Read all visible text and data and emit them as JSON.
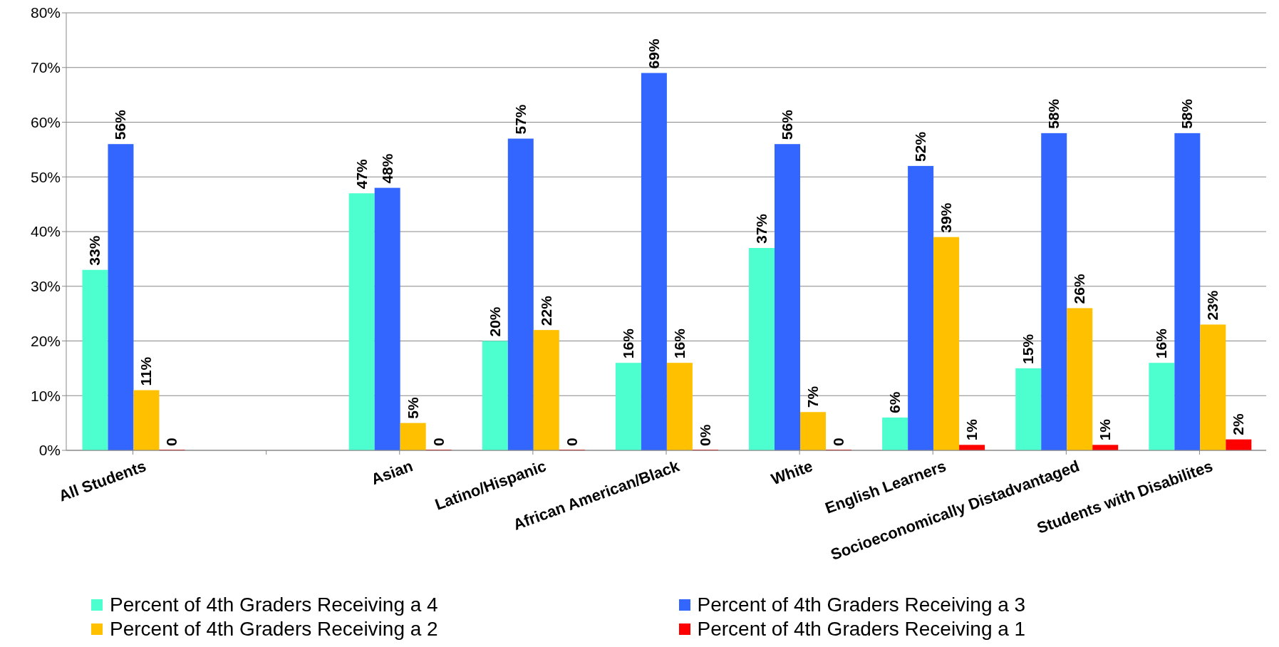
{
  "chart_data": {
    "type": "bar",
    "categories": [
      "All Students",
      null,
      "Asian",
      "Latino/Hispanic",
      "African American/Black",
      "White",
      "English Learners",
      "Socioeconomically Distadvantaged",
      "Students with Disabilites"
    ],
    "series": [
      {
        "name": "Percent of 4th Graders Receiving a 4",
        "color": "#4dffcf",
        "values": [
          33,
          null,
          47,
          20,
          16,
          37,
          6,
          15,
          16
        ],
        "value_labels": [
          "33%",
          null,
          "47%",
          "20%",
          "16%",
          "37%",
          "6%",
          "15%",
          "16%"
        ]
      },
      {
        "name": "Percent of 4th Graders Receiving a 3",
        "color": "#3366ff",
        "values": [
          56,
          null,
          48,
          57,
          69,
          56,
          52,
          58,
          58
        ],
        "value_labels": [
          "56%",
          null,
          "48%",
          "57%",
          "69%",
          "56%",
          "52%",
          "58%",
          "58%"
        ]
      },
      {
        "name": "Percent of 4th Graders Receiving a 2",
        "color": "#ffc000",
        "values": [
          11,
          null,
          5,
          22,
          16,
          7,
          39,
          26,
          23
        ],
        "value_labels": [
          "11%",
          null,
          "5%",
          "22%",
          "16%",
          "7%",
          "39%",
          "26%",
          "23%"
        ]
      },
      {
        "name": "Percent of 4th Graders Receiving a 1",
        "color": "#ff0000",
        "values": [
          0,
          null,
          0,
          0,
          0,
          0,
          1,
          1,
          2
        ],
        "value_labels": [
          "0",
          null,
          "0",
          "0",
          "0%",
          "0",
          "1%",
          "1%",
          "2%"
        ]
      }
    ],
    "ylim": [
      0,
      80
    ],
    "yticks": [
      {
        "value": 0,
        "label": "0%"
      },
      {
        "value": 10,
        "label": "10%"
      },
      {
        "value": 20,
        "label": "20%"
      },
      {
        "value": 30,
        "label": "30%"
      },
      {
        "value": 40,
        "label": "40%"
      },
      {
        "value": 50,
        "label": "50%"
      },
      {
        "value": 60,
        "label": "60%"
      },
      {
        "value": 70,
        "label": "70%"
      },
      {
        "value": 80,
        "label": "80%"
      }
    ],
    "grid": "y",
    "legend": "bottom"
  }
}
